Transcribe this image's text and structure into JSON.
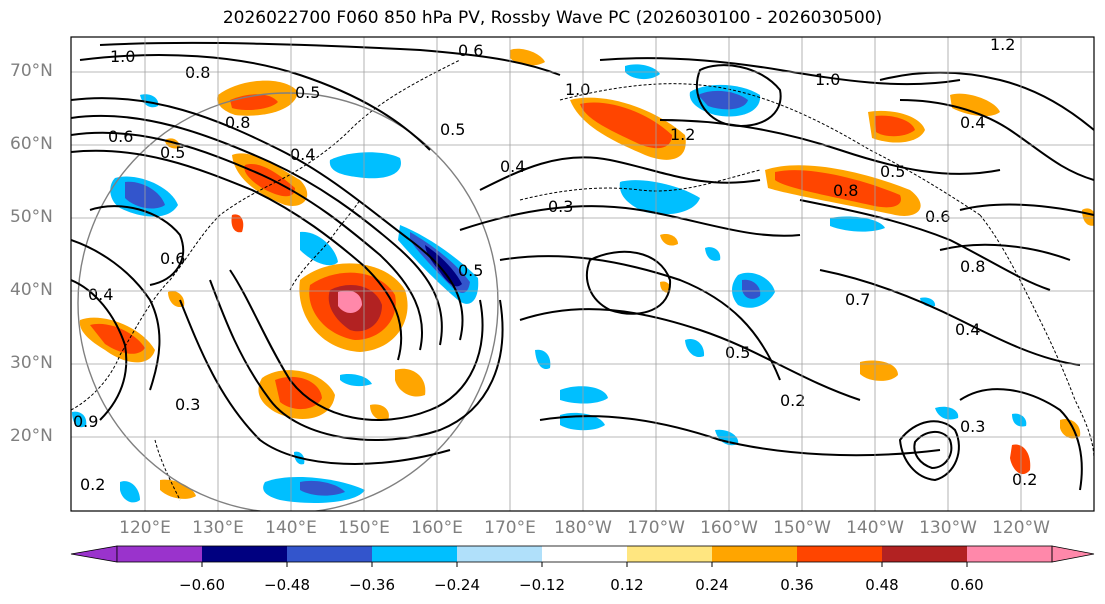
{
  "title": "2026022700 F060 850 hPa PV, Rossby Wave PC (2026030100 - 2026030500)",
  "lat_labels": [
    "70°N",
    "60°N",
    "50°N",
    "40°N",
    "30°N",
    "20°N"
  ],
  "lon_labels": [
    "120°E",
    "130°E",
    "140°E",
    "150°E",
    "160°E",
    "170°E",
    "180°W",
    "170°W",
    "160°W",
    "150°W",
    "140°W",
    "130°W",
    "120°W"
  ],
  "contour_labels": [
    "1.2",
    "1.0",
    "0.8",
    "0.8",
    "0.6",
    "0.5",
    "0.4",
    "0.4",
    "0.3",
    "0.6",
    "0.6",
    "1.0",
    "0.7",
    "1.0",
    "0.5",
    "0.4",
    "1.2",
    "0.8",
    "0.5",
    "0.6",
    "0.5",
    "0.4",
    "0.3",
    "0.2",
    "0.3",
    "0.2",
    "0.4",
    "0.2",
    "0.8",
    "0.9",
    "0.5",
    "0.5"
  ],
  "colorbar": {
    "ticks": [
      "−0.60",
      "−0.48",
      "−0.36",
      "−0.24",
      "−0.12",
      "0.12",
      "0.24",
      "0.36",
      "0.48",
      "0.60"
    ],
    "colors": [
      "#9a33cc",
      "#000080",
      "#3355cc",
      "#00bfff",
      "#b0e0fa",
      "#ffffff",
      "#ffe680",
      "#ffa500",
      "#ff4500",
      "#b22222",
      "#ff88aa"
    ]
  }
}
